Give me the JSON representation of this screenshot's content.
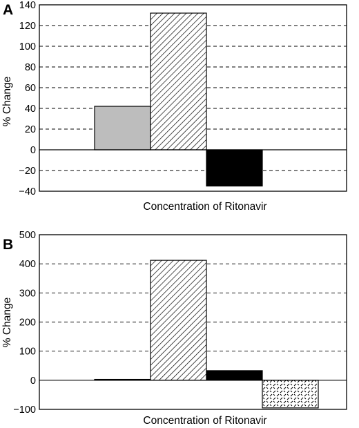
{
  "chart_data": [
    {
      "type": "bar",
      "panel_label": "A",
      "xlabel": "Concentration of Ritonavir",
      "ylabel": "% Change",
      "ylim": [
        -40,
        140
      ],
      "yticks": [
        -40,
        -20,
        0,
        20,
        40,
        60,
        80,
        100,
        120,
        140
      ],
      "grid": true,
      "values": [
        42,
        132,
        -35
      ],
      "fills": [
        "light-gray",
        "diagonal-hatch",
        "black"
      ]
    },
    {
      "type": "bar",
      "panel_label": "B",
      "xlabel": "Concentration of Ritonavir",
      "ylabel": "% Change",
      "ylim": [
        -100,
        500
      ],
      "yticks": [
        -100,
        0,
        100,
        200,
        300,
        400,
        500
      ],
      "grid": true,
      "values": [
        3,
        412,
        33,
        -95
      ],
      "fills": [
        "light-gray",
        "diagonal-hatch",
        "black",
        "zigzag-pattern"
      ]
    }
  ],
  "colors": {
    "light_gray": "#bdbdbd",
    "black": "#000000",
    "background": "#ffffff"
  }
}
